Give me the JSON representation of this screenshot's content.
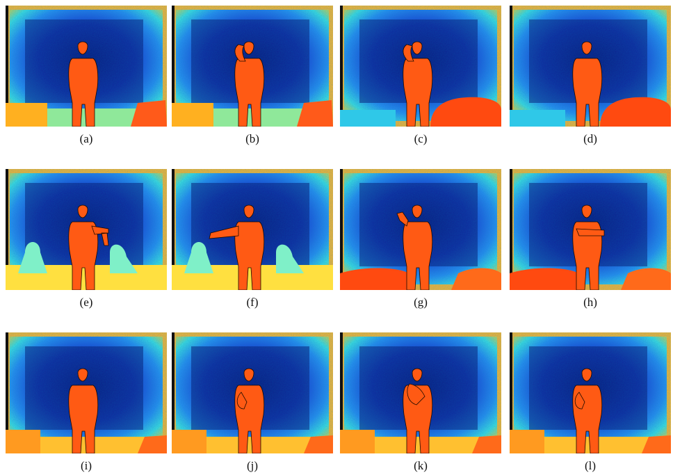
{
  "panels": [
    {
      "caption": "(a)",
      "scene": "A",
      "pose": "stand"
    },
    {
      "caption": "(b)",
      "scene": "A",
      "pose": "hand-head"
    },
    {
      "caption": "(c)",
      "scene": "B",
      "pose": "hand-head"
    },
    {
      "caption": "(d)",
      "scene": "B",
      "pose": "stand"
    },
    {
      "caption": "(e)",
      "scene": "C",
      "pose": "arm-bent"
    },
    {
      "caption": "(f)",
      "scene": "C",
      "pose": "arm-out"
    },
    {
      "caption": "(g)",
      "scene": "D",
      "pose": "wave"
    },
    {
      "caption": "(h)",
      "scene": "D",
      "pose": "arm-across"
    },
    {
      "caption": "(i)",
      "scene": "E",
      "pose": "stand"
    },
    {
      "caption": "(j)",
      "scene": "E",
      "pose": "hand-chest"
    },
    {
      "caption": "(k)",
      "scene": "E",
      "pose": "hand-face"
    },
    {
      "caption": "(l)",
      "scene": "E",
      "pose": "hand-chest"
    }
  ]
}
